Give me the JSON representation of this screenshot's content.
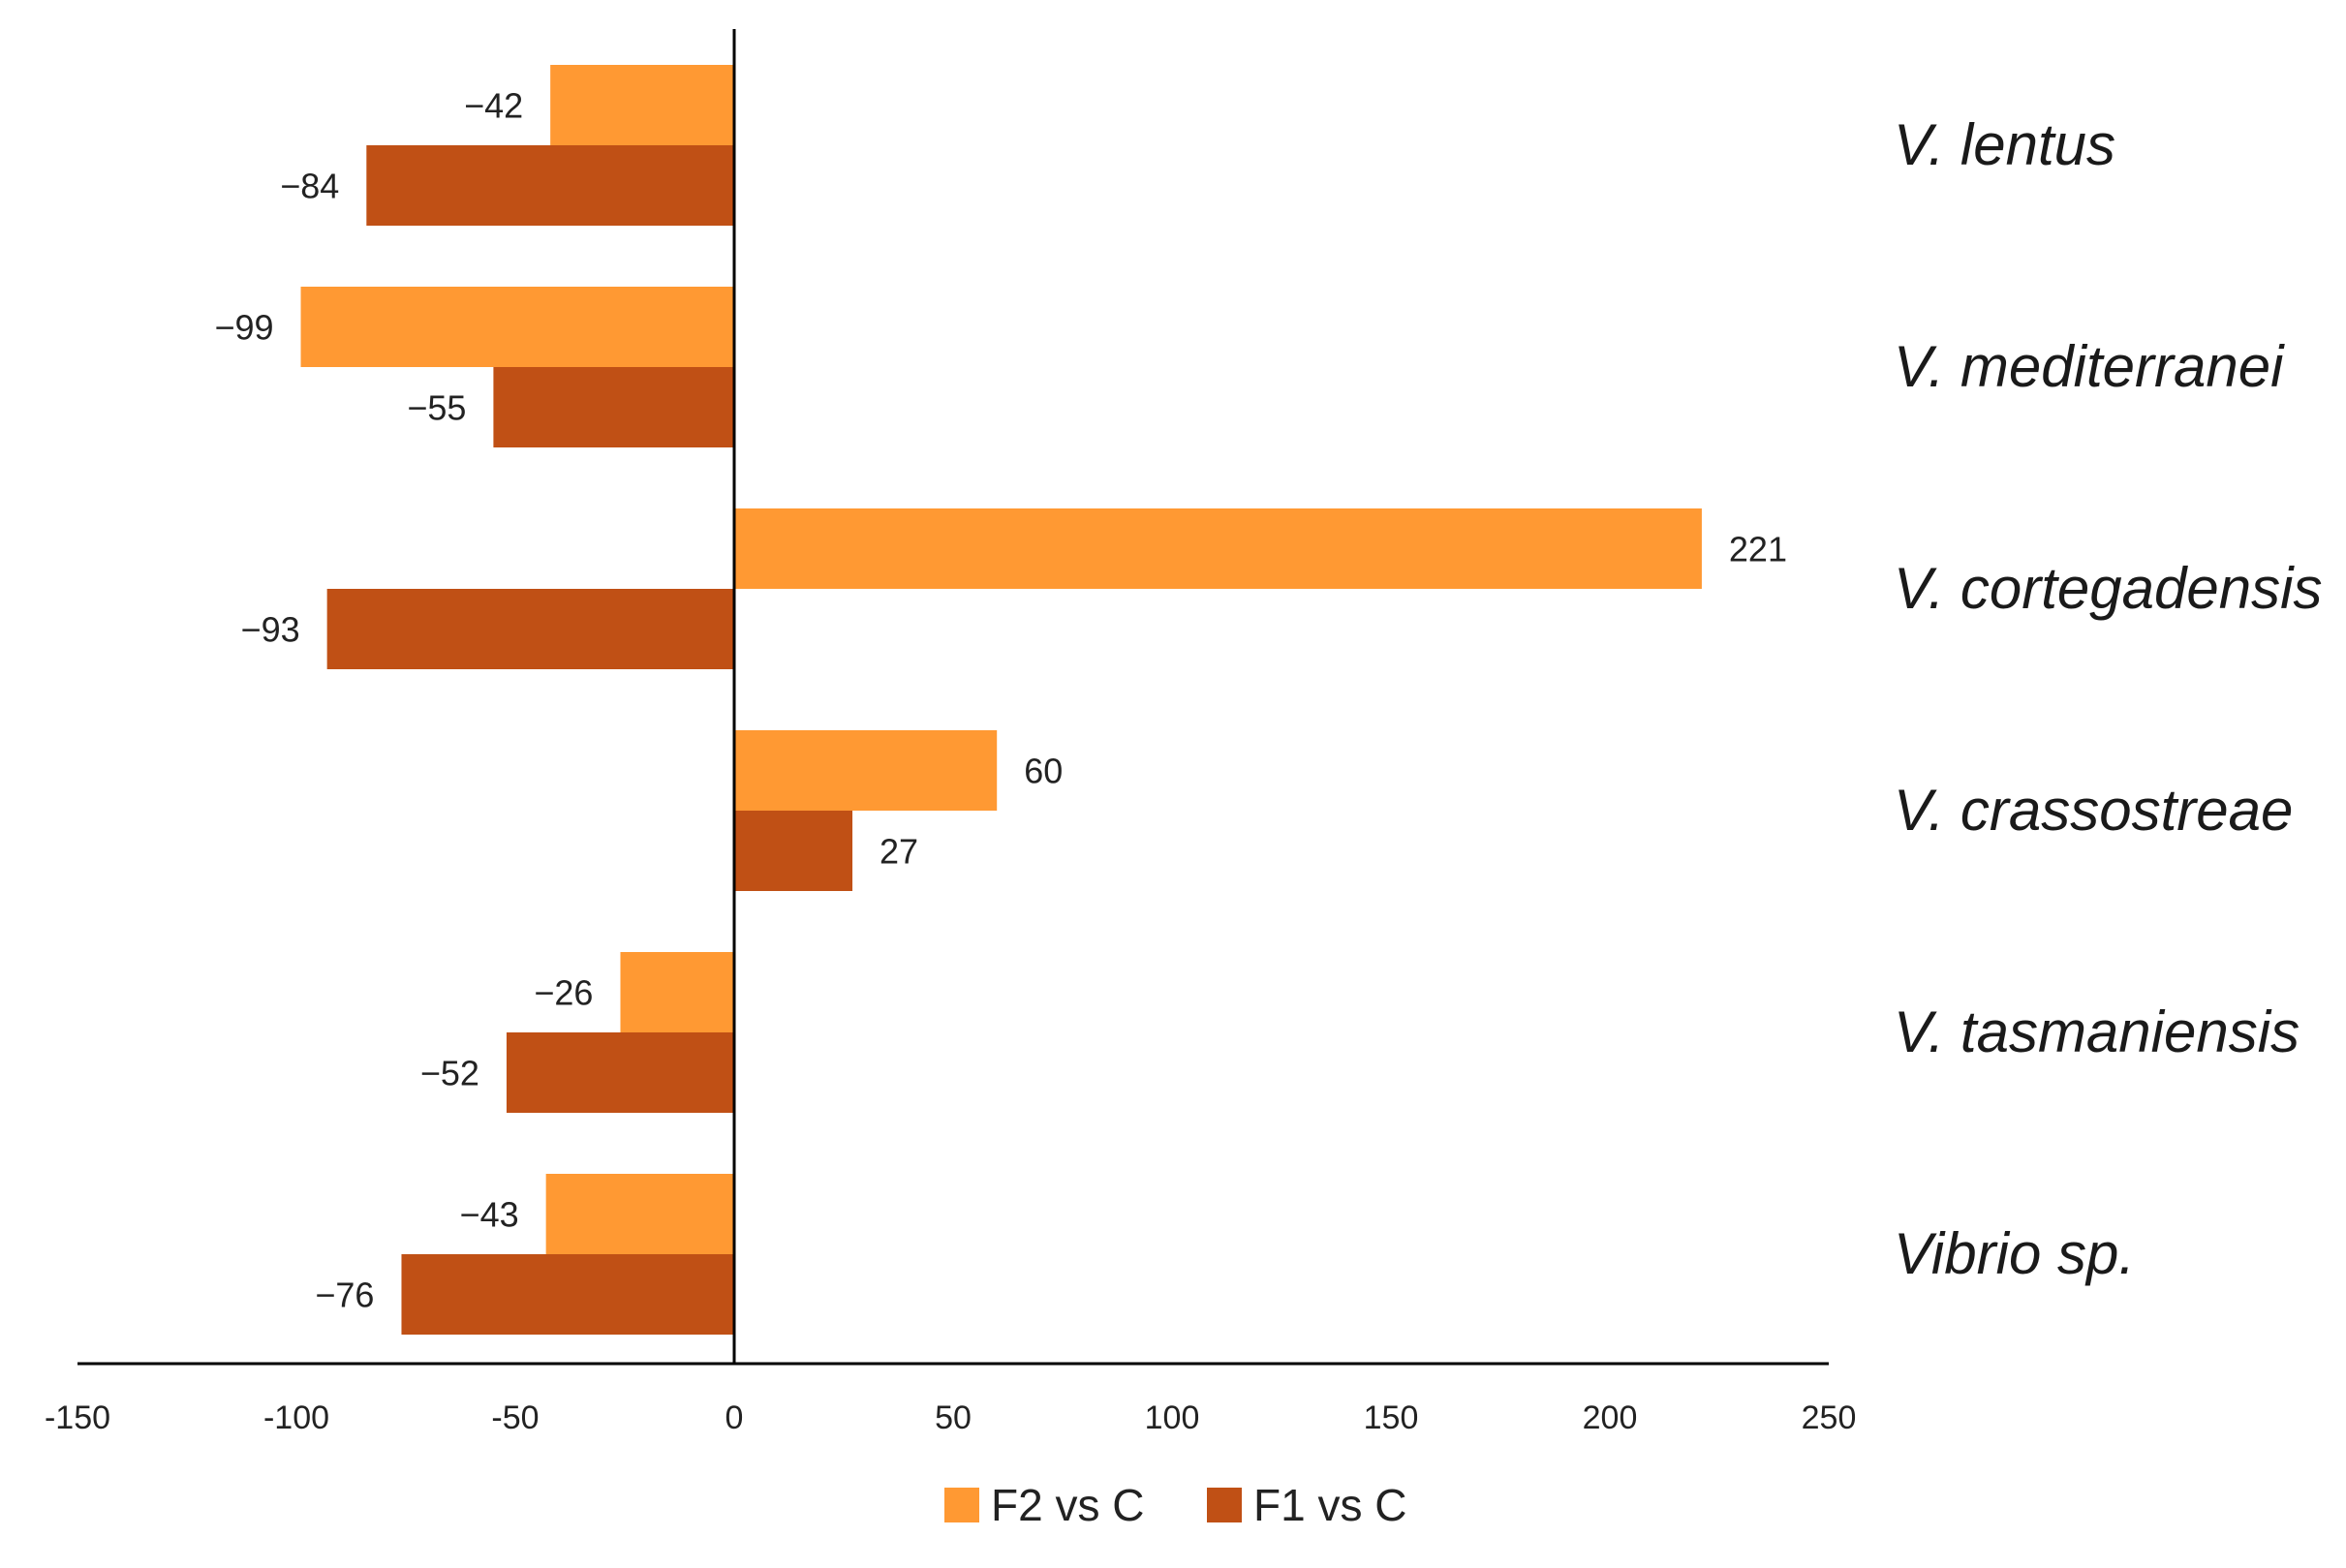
{
  "chart_data": {
    "type": "bar",
    "orientation": "horizontal",
    "categories": [
      "V. lentus",
      "V. mediterranei",
      "V. cortegadensis",
      "V. crassostreae",
      "V. tasmaniensis",
      "Vibrio sp."
    ],
    "series": [
      {
        "name": "F2 vs C",
        "color": "#FF9933",
        "values": [
          -42,
          -99,
          221,
          60,
          -26,
          -43
        ],
        "labels": [
          "−42",
          "−99",
          "221",
          "60",
          "−26",
          "−43"
        ]
      },
      {
        "name": "F1 vs C",
        "color": "#C05015",
        "values": [
          -84,
          -55,
          -93,
          27,
          -52,
          -76
        ],
        "labels": [
          "−84",
          "−55",
          "−93",
          "27",
          "−52",
          "−76"
        ]
      }
    ],
    "xlim": [
      -150,
      250
    ],
    "xticks": [
      -150,
      -100,
      -50,
      0,
      50,
      100,
      150,
      200,
      250
    ],
    "xtick_labels": [
      "-150",
      "-100",
      "-50",
      "0",
      "50",
      "100",
      "150",
      "200",
      "250"
    ],
    "title": "",
    "xlabel": "",
    "ylabel": "",
    "grid": false,
    "legend_position": "bottom-center"
  }
}
